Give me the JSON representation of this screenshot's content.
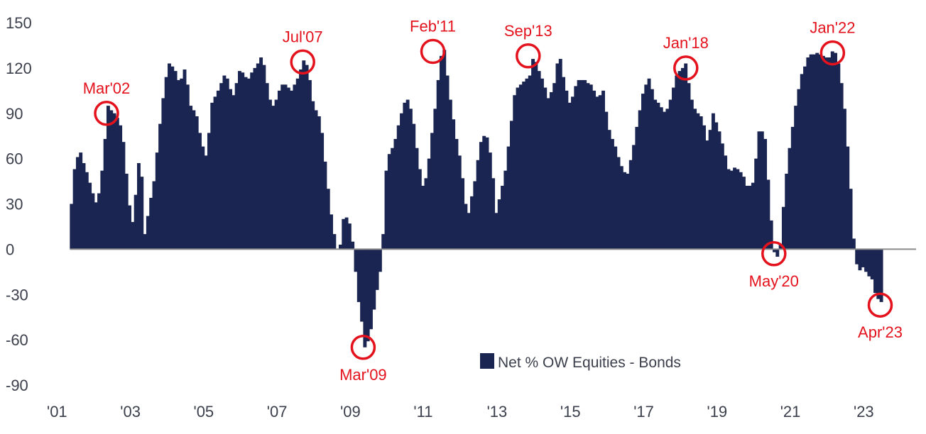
{
  "chart_data": {
    "type": "bar",
    "title": "",
    "xlabel": "",
    "ylabel": "",
    "x_range": [
      2001.0,
      2023.6
    ],
    "ylim": [
      -90,
      150
    ],
    "grid": false,
    "colors": {
      "bar": "#1b2552",
      "annotation": "#e3121c",
      "zero_line": "#8a8a8a",
      "text": "#3a3f4b"
    },
    "yticks": [
      150,
      120,
      90,
      60,
      30,
      0,
      -30,
      -60,
      -90
    ],
    "xticks": [
      {
        "x": 2001,
        "label": "'01"
      },
      {
        "x": 2003,
        "label": "'03"
      },
      {
        "x": 2005,
        "label": "'05"
      },
      {
        "x": 2007,
        "label": "'07"
      },
      {
        "x": 2009,
        "label": "'09"
      },
      {
        "x": 2011,
        "label": "'11"
      },
      {
        "x": 2013,
        "label": "'13"
      },
      {
        "x": 2015,
        "label": "'15"
      },
      {
        "x": 2017,
        "label": "'17"
      },
      {
        "x": 2019,
        "label": "'19"
      },
      {
        "x": 2021,
        "label": "'21"
      },
      {
        "x": 2023,
        "label": "'23"
      }
    ],
    "legend": {
      "label": "Net % OW Equities - Bonds",
      "position": "bottom-center"
    },
    "series": [
      {
        "name": "Net % OW Equities - Bonds",
        "anchors": [
          [
            2001.2,
            30
          ],
          [
            2001.3,
            58
          ],
          [
            2001.45,
            64
          ],
          [
            2001.6,
            52
          ],
          [
            2001.75,
            40
          ],
          [
            2001.9,
            28
          ],
          [
            2002.05,
            55
          ],
          [
            2002.2,
            95
          ],
          [
            2002.35,
            90
          ],
          [
            2002.5,
            86
          ],
          [
            2002.6,
            75
          ],
          [
            2002.7,
            50
          ],
          [
            2002.8,
            25
          ],
          [
            2002.9,
            15
          ],
          [
            2003.0,
            58
          ],
          [
            2003.1,
            55
          ],
          [
            2003.2,
            10
          ],
          [
            2003.3,
            25
          ],
          [
            2003.45,
            45
          ],
          [
            2003.6,
            80
          ],
          [
            2003.75,
            110
          ],
          [
            2003.85,
            123
          ],
          [
            2004.0,
            120
          ],
          [
            2004.15,
            110
          ],
          [
            2004.3,
            120
          ],
          [
            2004.45,
            95
          ],
          [
            2004.6,
            90
          ],
          [
            2004.75,
            70
          ],
          [
            2004.9,
            60
          ],
          [
            2005.0,
            95
          ],
          [
            2005.2,
            105
          ],
          [
            2005.4,
            117
          ],
          [
            2005.6,
            100
          ],
          [
            2005.8,
            120
          ],
          [
            2006.0,
            112
          ],
          [
            2006.2,
            120
          ],
          [
            2006.4,
            128
          ],
          [
            2006.5,
            115
          ],
          [
            2006.6,
            100
          ],
          [
            2006.7,
            95
          ],
          [
            2006.8,
            100
          ],
          [
            2006.9,
            108
          ],
          [
            2007.0,
            110
          ],
          [
            2007.2,
            105
          ],
          [
            2007.4,
            115
          ],
          [
            2007.55,
            126
          ],
          [
            2007.65,
            120
          ],
          [
            2007.8,
            95
          ],
          [
            2008.0,
            85
          ],
          [
            2008.15,
            50
          ],
          [
            2008.3,
            20
          ],
          [
            2008.4,
            5
          ],
          [
            2008.5,
            -5
          ],
          [
            2008.6,
            20
          ],
          [
            2008.75,
            22
          ],
          [
            2008.9,
            0
          ],
          [
            2009.0,
            -30
          ],
          [
            2009.1,
            -45
          ],
          [
            2009.2,
            -65
          ],
          [
            2009.3,
            -60
          ],
          [
            2009.4,
            -50
          ],
          [
            2009.5,
            -30
          ],
          [
            2009.6,
            -20
          ],
          [
            2009.7,
            10
          ],
          [
            2009.8,
            60
          ],
          [
            2009.9,
            65
          ],
          [
            2010.0,
            70
          ],
          [
            2010.1,
            80
          ],
          [
            2010.25,
            95
          ],
          [
            2010.35,
            100
          ],
          [
            2010.5,
            90
          ],
          [
            2010.65,
            60
          ],
          [
            2010.8,
            40
          ],
          [
            2010.9,
            50
          ],
          [
            2011.0,
            70
          ],
          [
            2011.15,
            100
          ],
          [
            2011.25,
            125
          ],
          [
            2011.35,
            135
          ],
          [
            2011.5,
            105
          ],
          [
            2011.65,
            80
          ],
          [
            2011.8,
            60
          ],
          [
            2012.0,
            20
          ],
          [
            2012.2,
            45
          ],
          [
            2012.35,
            70
          ],
          [
            2012.5,
            78
          ],
          [
            2012.65,
            60
          ],
          [
            2012.8,
            20
          ],
          [
            2012.9,
            40
          ],
          [
            2013.0,
            45
          ],
          [
            2013.15,
            75
          ],
          [
            2013.3,
            105
          ],
          [
            2013.5,
            110
          ],
          [
            2013.7,
            115
          ],
          [
            2013.8,
            128
          ],
          [
            2013.95,
            118
          ],
          [
            2014.05,
            112
          ],
          [
            2014.2,
            100
          ],
          [
            2014.35,
            108
          ],
          [
            2014.5,
            130
          ],
          [
            2014.65,
            110
          ],
          [
            2014.8,
            95
          ],
          [
            2015.0,
            112
          ],
          [
            2015.2,
            112
          ],
          [
            2015.4,
            108
          ],
          [
            2015.55,
            100
          ],
          [
            2015.7,
            105
          ],
          [
            2015.85,
            80
          ],
          [
            2016.0,
            70
          ],
          [
            2016.2,
            55
          ],
          [
            2016.35,
            48
          ],
          [
            2016.5,
            65
          ],
          [
            2016.65,
            85
          ],
          [
            2016.8,
            105
          ],
          [
            2016.95,
            113
          ],
          [
            2017.1,
            100
          ],
          [
            2017.25,
            95
          ],
          [
            2017.4,
            90
          ],
          [
            2017.55,
            100
          ],
          [
            2017.7,
            115
          ],
          [
            2017.85,
            120
          ],
          [
            2017.95,
            123
          ],
          [
            2018.1,
            100
          ],
          [
            2018.25,
            90
          ],
          [
            2018.4,
            88
          ],
          [
            2018.55,
            70
          ],
          [
            2018.7,
            90
          ],
          [
            2018.85,
            80
          ],
          [
            2019.0,
            65
          ],
          [
            2019.15,
            50
          ],
          [
            2019.3,
            55
          ],
          [
            2019.5,
            50
          ],
          [
            2019.65,
            40
          ],
          [
            2019.8,
            45
          ],
          [
            2019.95,
            78
          ],
          [
            2020.1,
            78
          ],
          [
            2020.25,
            30
          ],
          [
            2020.35,
            -2
          ],
          [
            2020.45,
            -5
          ],
          [
            2020.55,
            5
          ],
          [
            2020.65,
            40
          ],
          [
            2020.8,
            70
          ],
          [
            2020.95,
            95
          ],
          [
            2021.1,
            115
          ],
          [
            2021.3,
            128
          ],
          [
            2021.5,
            130
          ],
          [
            2021.7,
            128
          ],
          [
            2021.85,
            126
          ],
          [
            2022.0,
            133
          ],
          [
            2022.15,
            120
          ],
          [
            2022.3,
            90
          ],
          [
            2022.45,
            40
          ],
          [
            2022.55,
            0
          ],
          [
            2022.65,
            -15
          ],
          [
            2022.8,
            -12
          ],
          [
            2022.95,
            -18
          ],
          [
            2023.05,
            -20
          ],
          [
            2023.15,
            -33
          ],
          [
            2023.25,
            -34
          ],
          [
            2023.35,
            -38
          ]
        ]
      }
    ],
    "annotations": [
      {
        "label": "Mar'02",
        "x": 2002.2,
        "y": 90,
        "text_pos": "above"
      },
      {
        "label": "Jul'07",
        "x": 2007.55,
        "y": 124,
        "text_pos": "above"
      },
      {
        "label": "Mar'09",
        "x": 2009.2,
        "y": -65,
        "text_pos": "below"
      },
      {
        "label": "Feb'11",
        "x": 2011.1,
        "y": 131,
        "text_pos": "above"
      },
      {
        "label": "Sep'13",
        "x": 2013.7,
        "y": 128,
        "text_pos": "above"
      },
      {
        "label": "Jan'18",
        "x": 2018.0,
        "y": 120,
        "text_pos": "above"
      },
      {
        "label": "May'20",
        "x": 2020.4,
        "y": -3,
        "text_pos": "below"
      },
      {
        "label": "Jan'22",
        "x": 2022.0,
        "y": 130,
        "text_pos": "above"
      },
      {
        "label": "Apr'23",
        "x": 2023.3,
        "y": -37,
        "text_pos": "below"
      }
    ]
  }
}
